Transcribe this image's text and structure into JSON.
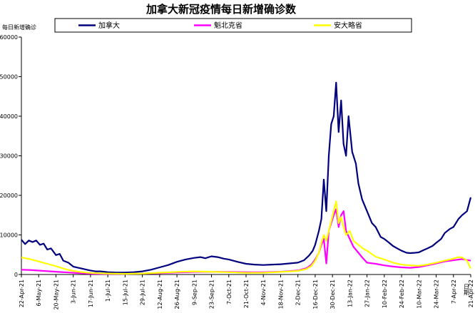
{
  "chart_data": {
    "type": "line",
    "title": "加拿大新冠疫情每日新增确诊数",
    "ylabel": "每日新增确诊",
    "xlabel": "",
    "ylim": [
      0,
      60000
    ],
    "yticks": [
      0,
      10000,
      20000,
      30000,
      40000,
      50000,
      60000
    ],
    "xlim": [
      "2021-04-22",
      "2022-04-21"
    ],
    "xticks": [
      "22-Apr-21",
      "6-May-21",
      "20-May-21",
      "3-Jun-21",
      "17-Jun-21",
      "1-Jul-21",
      "15-Jul-21",
      "29-Jul-21",
      "12-Aug-21",
      "26-Aug-21",
      "9-Sep-21",
      "23-Sep-21",
      "7-Oct-21",
      "21-Oct-21",
      "4-Nov-21",
      "18-Nov-21",
      "2-Dec-21",
      "16-Dec-21",
      "30-Dec-21",
      "13-Jan-22",
      "27-Jan-22",
      "10-Feb-22",
      "24-Feb-22",
      "10-Mar-22",
      "24-Mar-22",
      "7-Apr-22",
      "21-Apr-22"
    ],
    "x_dates": [
      "2021-04-22",
      "2021-05-06",
      "2021-05-20",
      "2021-06-03",
      "2021-06-17",
      "2021-07-01",
      "2021-07-15",
      "2021-07-29",
      "2021-08-12",
      "2021-08-26",
      "2021-09-09",
      "2021-09-23",
      "2021-10-07",
      "2021-10-21",
      "2021-11-04",
      "2021-11-18",
      "2021-12-02",
      "2021-12-16",
      "2021-12-30",
      "2022-01-13",
      "2022-01-27",
      "2022-02-10",
      "2022-02-24",
      "2022-03-10",
      "2022-03-24",
      "2022-04-07",
      "2022-04-21"
    ],
    "x_end_label": "日期",
    "grid": false,
    "legend": "top",
    "series": [
      {
        "name": "加拿大",
        "color": "#00007f",
        "points": [
          [
            "2021-04-22",
            8800
          ],
          [
            "2021-04-25",
            7700
          ],
          [
            "2021-04-28",
            8600
          ],
          [
            "2021-05-01",
            8200
          ],
          [
            "2021-05-04",
            8600
          ],
          [
            "2021-05-07",
            7500
          ],
          [
            "2021-05-10",
            7800
          ],
          [
            "2021-05-13",
            6300
          ],
          [
            "2021-05-16",
            6600
          ],
          [
            "2021-05-20",
            4900
          ],
          [
            "2021-05-23",
            5200
          ],
          [
            "2021-05-26",
            3500
          ],
          [
            "2021-05-30",
            3000
          ],
          [
            "2021-06-03",
            2000
          ],
          [
            "2021-06-07",
            1700
          ],
          [
            "2021-06-10",
            1500
          ],
          [
            "2021-06-14",
            1200
          ],
          [
            "2021-06-17",
            1000
          ],
          [
            "2021-06-21",
            800
          ],
          [
            "2021-06-25",
            800
          ],
          [
            "2021-07-01",
            600
          ],
          [
            "2021-07-08",
            500
          ],
          [
            "2021-07-15",
            500
          ],
          [
            "2021-07-22",
            600
          ],
          [
            "2021-07-29",
            800
          ],
          [
            "2021-08-05",
            1200
          ],
          [
            "2021-08-12",
            1800
          ],
          [
            "2021-08-19",
            2400
          ],
          [
            "2021-08-26",
            3200
          ],
          [
            "2021-09-02",
            3800
          ],
          [
            "2021-09-09",
            4200
          ],
          [
            "2021-09-14",
            4400
          ],
          [
            "2021-09-18",
            4100
          ],
          [
            "2021-09-23",
            4600
          ],
          [
            "2021-09-28",
            4400
          ],
          [
            "2021-10-03",
            4000
          ],
          [
            "2021-10-07",
            3800
          ],
          [
            "2021-10-14",
            3200
          ],
          [
            "2021-10-21",
            2700
          ],
          [
            "2021-10-28",
            2500
          ],
          [
            "2021-11-04",
            2400
          ],
          [
            "2021-11-11",
            2500
          ],
          [
            "2021-11-18",
            2600
          ],
          [
            "2021-11-25",
            2800
          ],
          [
            "2021-12-02",
            3000
          ],
          [
            "2021-12-07",
            3600
          ],
          [
            "2021-12-11",
            4800
          ],
          [
            "2021-12-14",
            6000
          ],
          [
            "2021-12-16",
            7500
          ],
          [
            "2021-12-19",
            11000
          ],
          [
            "2021-12-21",
            14000
          ],
          [
            "2021-12-23",
            24000
          ],
          [
            "2021-12-25",
            16000
          ],
          [
            "2021-12-27",
            30000
          ],
          [
            "2021-12-29",
            38000
          ],
          [
            "2021-12-31",
            40000
          ],
          [
            "2022-01-02",
            48500
          ],
          [
            "2022-01-04",
            36000
          ],
          [
            "2022-01-06",
            44000
          ],
          [
            "2022-01-08",
            33000
          ],
          [
            "2022-01-10",
            30000
          ],
          [
            "2022-01-12",
            40000
          ],
          [
            "2022-01-15",
            31000
          ],
          [
            "2022-01-18",
            28000
          ],
          [
            "2022-01-20",
            23000
          ],
          [
            "2022-01-23",
            19000
          ],
          [
            "2022-01-27",
            16000
          ],
          [
            "2022-01-31",
            13000
          ],
          [
            "2022-02-03",
            12000
          ],
          [
            "2022-02-07",
            9500
          ],
          [
            "2022-02-10",
            9000
          ],
          [
            "2022-02-14",
            8000
          ],
          [
            "2022-02-17",
            7200
          ],
          [
            "2022-02-21",
            6500
          ],
          [
            "2022-02-24",
            6000
          ],
          [
            "2022-02-28",
            5500
          ],
          [
            "2022-03-03",
            5400
          ],
          [
            "2022-03-07",
            5500
          ],
          [
            "2022-03-10",
            5600
          ],
          [
            "2022-03-14",
            6200
          ],
          [
            "2022-03-17",
            6600
          ],
          [
            "2022-03-21",
            7200
          ],
          [
            "2022-03-24",
            8000
          ],
          [
            "2022-03-28",
            9000
          ],
          [
            "2022-03-31",
            10500
          ],
          [
            "2022-04-04",
            11500
          ],
          [
            "2022-04-07",
            12000
          ],
          [
            "2022-04-11",
            14000
          ],
          [
            "2022-04-14",
            15000
          ],
          [
            "2022-04-18",
            16000
          ],
          [
            "2022-04-21",
            19500
          ]
        ]
      },
      {
        "name": "魁北克省",
        "color": "#ff00ff",
        "points": [
          [
            "2021-04-22",
            1200
          ],
          [
            "2021-05-01",
            1100
          ],
          [
            "2021-05-10",
            900
          ],
          [
            "2021-05-20",
            700
          ],
          [
            "2021-05-30",
            500
          ],
          [
            "2021-06-10",
            300
          ],
          [
            "2021-06-20",
            200
          ],
          [
            "2021-07-01",
            150
          ],
          [
            "2021-07-15",
            150
          ],
          [
            "2021-07-29",
            250
          ],
          [
            "2021-08-12",
            350
          ],
          [
            "2021-08-26",
            500
          ],
          [
            "2021-09-09",
            650
          ],
          [
            "2021-09-23",
            700
          ],
          [
            "2021-10-07",
            650
          ],
          [
            "2021-10-21",
            550
          ],
          [
            "2021-11-04",
            550
          ],
          [
            "2021-11-18",
            700
          ],
          [
            "2021-12-02",
            1000
          ],
          [
            "2021-12-09",
            1600
          ],
          [
            "2021-12-13",
            2500
          ],
          [
            "2021-12-16",
            3800
          ],
          [
            "2021-12-19",
            5500
          ],
          [
            "2021-12-21",
            7500
          ],
          [
            "2021-12-23",
            9000
          ],
          [
            "2021-12-25",
            2800
          ],
          [
            "2021-12-27",
            11000
          ],
          [
            "2021-12-29",
            13000
          ],
          [
            "2021-12-31",
            15000
          ],
          [
            "2022-01-02",
            16500
          ],
          [
            "2022-01-04",
            12000
          ],
          [
            "2022-01-06",
            15000
          ],
          [
            "2022-01-08",
            16000
          ],
          [
            "2022-01-10",
            11000
          ],
          [
            "2022-01-13",
            9000
          ],
          [
            "2022-01-16",
            7000
          ],
          [
            "2022-01-20",
            5500
          ],
          [
            "2022-01-24",
            4000
          ],
          [
            "2022-01-27",
            3000
          ],
          [
            "2022-02-03",
            2700
          ],
          [
            "2022-02-10",
            2300
          ],
          [
            "2022-02-17",
            2000
          ],
          [
            "2022-02-24",
            1800
          ],
          [
            "2022-03-03",
            1700
          ],
          [
            "2022-03-10",
            1900
          ],
          [
            "2022-03-17",
            2300
          ],
          [
            "2022-03-24",
            2800
          ],
          [
            "2022-03-31",
            3300
          ],
          [
            "2022-04-07",
            3600
          ],
          [
            "2022-04-14",
            3900
          ],
          [
            "2022-04-21",
            3500
          ]
        ]
      },
      {
        "name": "安大略省",
        "color": "#ffff00",
        "points": [
          [
            "2021-04-22",
            4300
          ],
          [
            "2021-04-29",
            3900
          ],
          [
            "2021-05-06",
            3300
          ],
          [
            "2021-05-13",
            2700
          ],
          [
            "2021-05-20",
            2100
          ],
          [
            "2021-05-27",
            1400
          ],
          [
            "2021-06-03",
            900
          ],
          [
            "2021-06-10",
            600
          ],
          [
            "2021-06-17",
            400
          ],
          [
            "2021-07-01",
            250
          ],
          [
            "2021-07-15",
            180
          ],
          [
            "2021-07-29",
            250
          ],
          [
            "2021-08-12",
            450
          ],
          [
            "2021-08-26",
            650
          ],
          [
            "2021-09-09",
            800
          ],
          [
            "2021-09-23",
            700
          ],
          [
            "2021-10-07",
            580
          ],
          [
            "2021-10-21",
            420
          ],
          [
            "2021-11-04",
            450
          ],
          [
            "2021-11-18",
            650
          ],
          [
            "2021-12-02",
            900
          ],
          [
            "2021-12-09",
            1400
          ],
          [
            "2021-12-13",
            2200
          ],
          [
            "2021-12-16",
            3500
          ],
          [
            "2021-12-19",
            5500
          ],
          [
            "2021-12-21",
            8000
          ],
          [
            "2021-12-23",
            10000
          ],
          [
            "2021-12-25",
            8500
          ],
          [
            "2021-12-27",
            11000
          ],
          [
            "2021-12-29",
            13500
          ],
          [
            "2021-12-31",
            16000
          ],
          [
            "2022-01-02",
            18500
          ],
          [
            "2022-01-04",
            13000
          ],
          [
            "2022-01-06",
            14500
          ],
          [
            "2022-01-08",
            12000
          ],
          [
            "2022-01-10",
            10000
          ],
          [
            "2022-01-13",
            11000
          ],
          [
            "2022-01-16",
            8500
          ],
          [
            "2022-01-20",
            7500
          ],
          [
            "2022-01-24",
            6500
          ],
          [
            "2022-01-27",
            6000
          ],
          [
            "2022-02-03",
            4500
          ],
          [
            "2022-02-10",
            3800
          ],
          [
            "2022-02-17",
            3000
          ],
          [
            "2022-02-24",
            2500
          ],
          [
            "2022-03-03",
            2300
          ],
          [
            "2022-03-10",
            2200
          ],
          [
            "2022-03-17",
            2500
          ],
          [
            "2022-03-24",
            3000
          ],
          [
            "2022-03-31",
            3500
          ],
          [
            "2022-04-07",
            4000
          ],
          [
            "2022-04-11",
            4400
          ],
          [
            "2022-04-14",
            4300
          ],
          [
            "2022-04-18",
            3500
          ],
          [
            "2022-04-21",
            1500
          ]
        ]
      }
    ]
  }
}
